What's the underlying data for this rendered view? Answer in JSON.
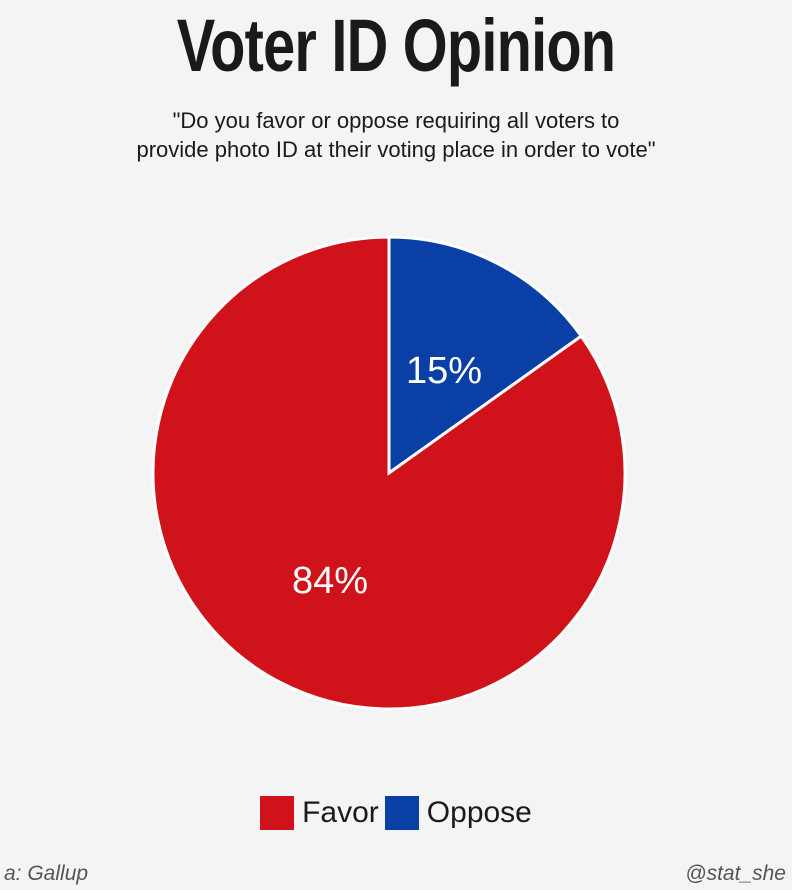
{
  "chart_data": {
    "type": "pie",
    "title": "Voter ID Opinion",
    "subtitle_lines": [
      "\"Do you favor or oppose requiring all voters to",
      "provide photo ID at their voting place in order to vote\""
    ],
    "slices": [
      {
        "label": "Oppose",
        "value": 15,
        "data_label": "15%",
        "color": "#0a3fa6"
      },
      {
        "label": "Favor",
        "value": 84,
        "data_label": "84%",
        "color": "#d0131b"
      }
    ],
    "legend": {
      "placement": "bottom",
      "entries": [
        "Favor",
        "Oppose"
      ]
    }
  },
  "footer": {
    "source": "a: Gallup",
    "handle": "@stat_she"
  }
}
